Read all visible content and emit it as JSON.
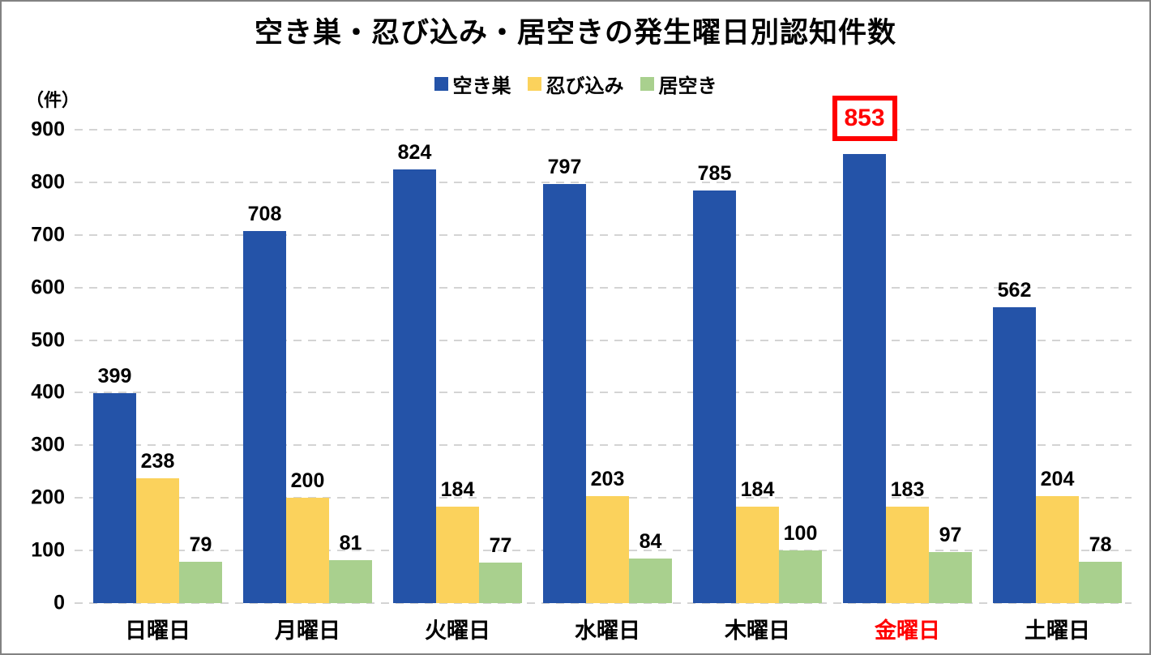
{
  "frame": {
    "border_color": "#828282",
    "background": "#FFFFFF"
  },
  "chart_data": {
    "type": "bar",
    "title": "空き巣・忍び込み・居空きの発生曜日別認知件数",
    "ylabel": "（件）",
    "categories": [
      "日曜日",
      "月曜日",
      "火曜日",
      "水曜日",
      "木曜日",
      "金曜日",
      "土曜日"
    ],
    "series": [
      {
        "name": "空き巣",
        "color": "#2453A8",
        "values": [
          399,
          708,
          824,
          797,
          785,
          853,
          562
        ]
      },
      {
        "name": "忍び込み",
        "color": "#FBD25C",
        "values": [
          238,
          200,
          184,
          203,
          184,
          183,
          204
        ]
      },
      {
        "name": "居空き",
        "color": "#A9D08E",
        "values": [
          79,
          81,
          77,
          84,
          100,
          97,
          78
        ]
      }
    ],
    "ylim": [
      0,
      900
    ],
    "ytick_interval": 100,
    "yticks": [
      0,
      100,
      200,
      300,
      400,
      500,
      600,
      700,
      800,
      900
    ],
    "grid": "horizontal-dashed",
    "gridline_color": "#D4D4D4",
    "legend_position": "top",
    "category_label_colors": {
      "金曜日": "#FF0000"
    },
    "highlight": {
      "series": "空き巣",
      "category": "金曜日",
      "value": 853,
      "style": "red-outline-box",
      "color": "#FF0000"
    }
  }
}
